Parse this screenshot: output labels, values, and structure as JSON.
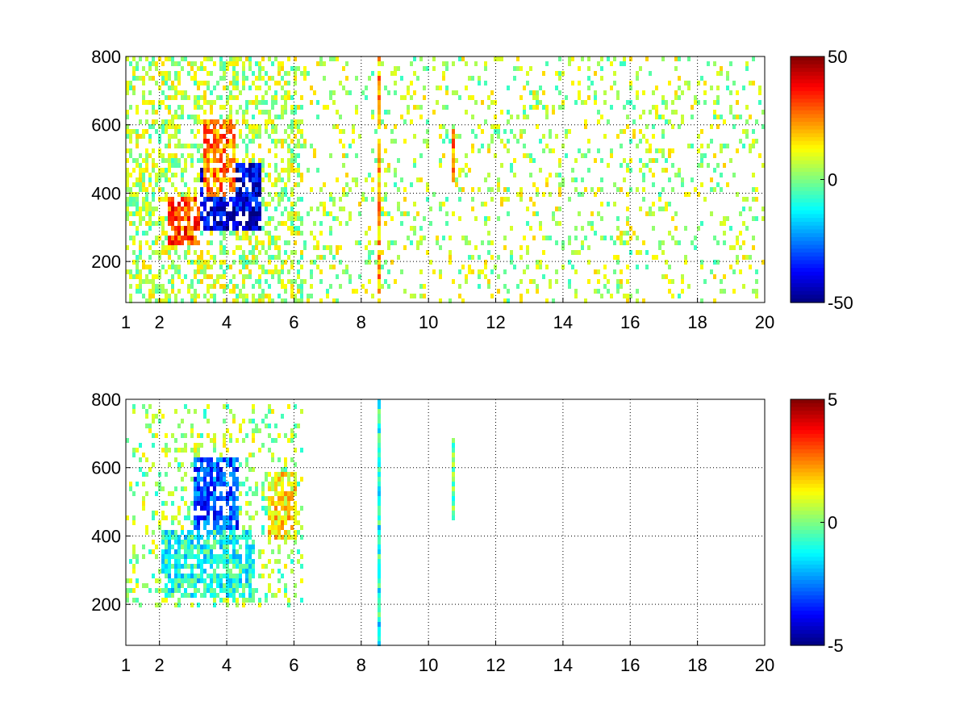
{
  "chart_data": [
    {
      "type": "heatmap",
      "title": "",
      "xlabel": "",
      "ylabel": "",
      "xlim": [
        1,
        20
      ],
      "ylim": [
        80,
        800
      ],
      "x_ticks": [
        1,
        2,
        4,
        6,
        8,
        10,
        12,
        14,
        16,
        18,
        20
      ],
      "x_tick_labels": [
        "1",
        "2",
        "4",
        "6",
        "8",
        "10",
        "12",
        "14",
        "16",
        "18",
        "20"
      ],
      "y_ticks": [
        200,
        400,
        600,
        800
      ],
      "y_tick_labels": [
        "200",
        "400",
        "600",
        "800"
      ],
      "grid": true,
      "colormap": "jet",
      "clim": [
        -50,
        50
      ],
      "colorbar_ticks": [
        -50,
        0,
        50
      ],
      "colorbar_tick_labels": [
        "-50",
        "0",
        "50"
      ],
      "features": [
        {
          "description_x": [
            2.2,
            3.2
          ],
          "description_y": [
            260,
            400
          ],
          "value": 30
        },
        {
          "description_x": [
            3.2,
            5.0
          ],
          "description_y": [
            300,
            500
          ],
          "value": -40
        },
        {
          "description_x": [
            3.3,
            4.2
          ],
          "description_y": [
            400,
            620
          ],
          "value": 25
        },
        {
          "description_x": [
            8.5,
            8.5
          ],
          "description_y": [
            80,
            800
          ],
          "value": 20
        },
        {
          "description_x": [
            10.7,
            10.7
          ],
          "description_y": [
            440,
            600
          ],
          "value": 25
        }
      ]
    },
    {
      "type": "heatmap",
      "title": "",
      "xlabel": "",
      "ylabel": "",
      "xlim": [
        1,
        20
      ],
      "ylim": [
        80,
        800
      ],
      "x_ticks": [
        1,
        2,
        4,
        6,
        8,
        10,
        12,
        14,
        16,
        18,
        20
      ],
      "x_tick_labels": [
        "1",
        "2",
        "4",
        "6",
        "8",
        "10",
        "12",
        "14",
        "16",
        "18",
        "20"
      ],
      "y_ticks": [
        200,
        400,
        600,
        800
      ],
      "y_tick_labels": [
        "200",
        "400",
        "600",
        "800"
      ],
      "grid": true,
      "colormap": "jet",
      "clim": [
        -5,
        5
      ],
      "colorbar_ticks": [
        -5,
        0,
        5
      ],
      "colorbar_tick_labels": [
        "-5",
        "0",
        "5"
      ],
      "features": [
        {
          "description_x": [
            2.0,
            4.8
          ],
          "description_y": [
            220,
            420
          ],
          "value": -1
        },
        {
          "description_x": [
            3.0,
            4.3
          ],
          "description_y": [
            420,
            640
          ],
          "value": -3
        },
        {
          "description_x": [
            5.2,
            6.0
          ],
          "description_y": [
            400,
            600
          ],
          "value": 1.5
        },
        {
          "description_x": [
            8.5,
            8.5
          ],
          "description_y": [
            80,
            800
          ],
          "value": -1
        },
        {
          "description_x": [
            10.7,
            10.7
          ],
          "description_y": [
            450,
            700
          ],
          "value": 0
        }
      ]
    }
  ]
}
